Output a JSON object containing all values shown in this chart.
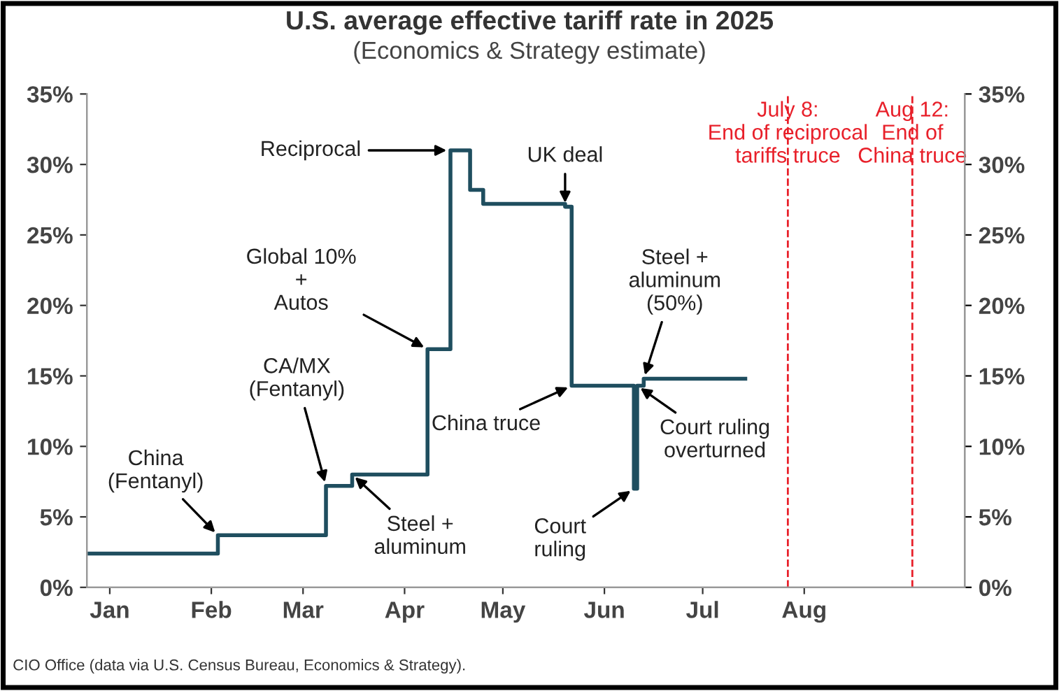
{
  "chart_data": {
    "type": "step",
    "title": "U.S. average effective tariff rate in 2025",
    "subtitle": "(Economics & Strategy estimate)",
    "x": [
      "2024-12-25",
      "2025-02-03",
      "2025-03-08",
      "2025-03-16",
      "2025-04-08",
      "2025-04-15",
      "2025-04-21",
      "2025-04-25",
      "2025-05-20",
      "2025-05-22",
      "2025-06-10",
      "2025-06-11",
      "2025-06-13",
      "2025-07-14"
    ],
    "series": [
      {
        "color": "#1f4e5f",
        "values": [
          2.4,
          3.7,
          7.2,
          8.0,
          16.9,
          31.0,
          28.2,
          27.2,
          27.0,
          14.3,
          7.0,
          14.3,
          14.8,
          14.8
        ]
      }
    ],
    "xlim": [
      "2024-12-25",
      "2025-09-19"
    ],
    "xticks": [
      {
        "value": "2025-01-01",
        "label": "Jan"
      },
      {
        "value": "2025-02-01",
        "label": "Feb"
      },
      {
        "value": "2025-03-01",
        "label": "Mar"
      },
      {
        "value": "2025-04-01",
        "label": "Apr"
      },
      {
        "value": "2025-05-01",
        "label": "May"
      },
      {
        "value": "2025-06-01",
        "label": "Jun"
      },
      {
        "value": "2025-07-01",
        "label": "Jul"
      },
      {
        "value": "2025-08-01",
        "label": "Aug"
      }
    ],
    "ylim": [
      0,
      35
    ],
    "yticks": [
      {
        "value": 0,
        "label": "0%"
      },
      {
        "value": 5,
        "label": "5%"
      },
      {
        "value": 10,
        "label": "10%"
      },
      {
        "value": 15,
        "label": "15%"
      },
      {
        "value": 20,
        "label": "20%"
      },
      {
        "value": 25,
        "label": "25%"
      },
      {
        "value": 30,
        "label": "30%"
      },
      {
        "value": 35,
        "label": "35%"
      }
    ],
    "y2lim": [
      0,
      35
    ],
    "y2ticks": [
      {
        "value": 0,
        "label": "0%"
      },
      {
        "value": 5,
        "label": "5%"
      },
      {
        "value": 10,
        "label": "10%"
      },
      {
        "value": 15,
        "label": "15%"
      },
      {
        "value": 20,
        "label": "20%"
      },
      {
        "value": 25,
        "label": "25%"
      },
      {
        "value": 30,
        "label": "30%"
      },
      {
        "value": 35,
        "label": "35%"
      }
    ],
    "ref_lines": [
      {
        "axis": "x",
        "value": "2025-07-27",
        "label": "July 8:\nEnd of reciprocal\ntariffs truce",
        "color": "#e8202a",
        "line_style": "dashed"
      },
      {
        "axis": "x",
        "value": "2025-09-03",
        "label": "Aug 12:\nEnd of\nChina truce",
        "color": "#e8202a",
        "line_style": "dashed"
      }
    ],
    "annotations": [
      {
        "text": "China\n(Fentanyl)",
        "x": "2025-02-03",
        "y": 3.7
      },
      {
        "text": "CA/MX\n(Fentanyl)",
        "x": "2025-03-08",
        "y": 7.2
      },
      {
        "text": "Steel +\naluminum",
        "x": "2025-03-16",
        "y": 8.0
      },
      {
        "text": "Global 10%\n+\nAutos",
        "x": "2025-04-08",
        "y": 16.9
      },
      {
        "text": "Reciprocal",
        "x": "2025-04-15",
        "y": 31.0
      },
      {
        "text": "UK deal",
        "x": "2025-05-20",
        "y": 27.0
      },
      {
        "text": "China truce",
        "x": "2025-05-22",
        "y": 14.3
      },
      {
        "text": "Court\nruling",
        "x": "2025-06-10",
        "y": 7.0
      },
      {
        "text": "Steel +\naluminum\n(50%)",
        "x": "2025-06-13",
        "y": 14.8
      },
      {
        "text": "Court ruling\noverturned",
        "x": "2025-06-11",
        "y": 14.3
      },
      "CIO Office (data via U.S. Census Bureau, Economics & Strategy)."
    ],
    "grid": false,
    "legend": false,
    "line_style": "solid",
    "marker": "none"
  }
}
